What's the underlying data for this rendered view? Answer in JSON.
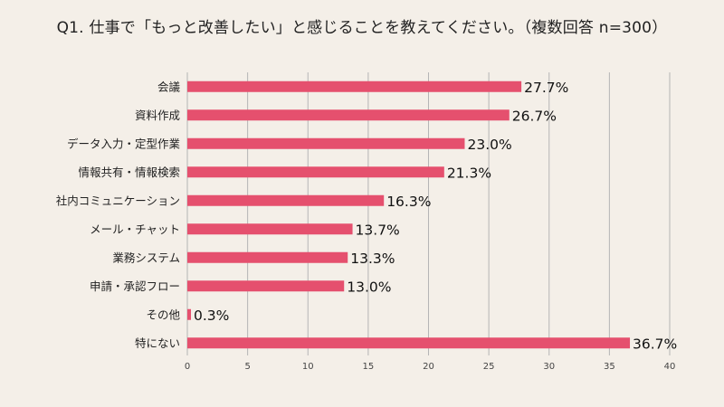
{
  "chart_data": {
    "type": "bar",
    "orientation": "horizontal",
    "title": "Q1. 仕事で「もっと改善したい」と感じることを教えてください。（複数回答 n=300）",
    "categories": [
      "会議",
      "資料作成",
      "データ入力・定型作業",
      "情報共有・情報検索",
      "社内コミュニケーション",
      "メール・チャット",
      "業務システム",
      "申請・承認フロー",
      "その他",
      "特にない"
    ],
    "values": [
      27.7,
      26.7,
      23.0,
      21.3,
      16.3,
      13.7,
      13.3,
      13.0,
      0.3,
      36.7
    ],
    "value_labels": [
      "27.7%",
      "26.7%",
      "23.0%",
      "21.3%",
      "16.3%",
      "13.7%",
      "13.3%",
      "13.0%",
      "0.3%",
      "36.7%"
    ],
    "xlim": [
      0,
      40
    ],
    "xticks": [
      0,
      5,
      10,
      15,
      20,
      25,
      30,
      35,
      40
    ],
    "grid": true,
    "bar_color": "#e5506e",
    "grid_color": "#b5b5b5"
  }
}
